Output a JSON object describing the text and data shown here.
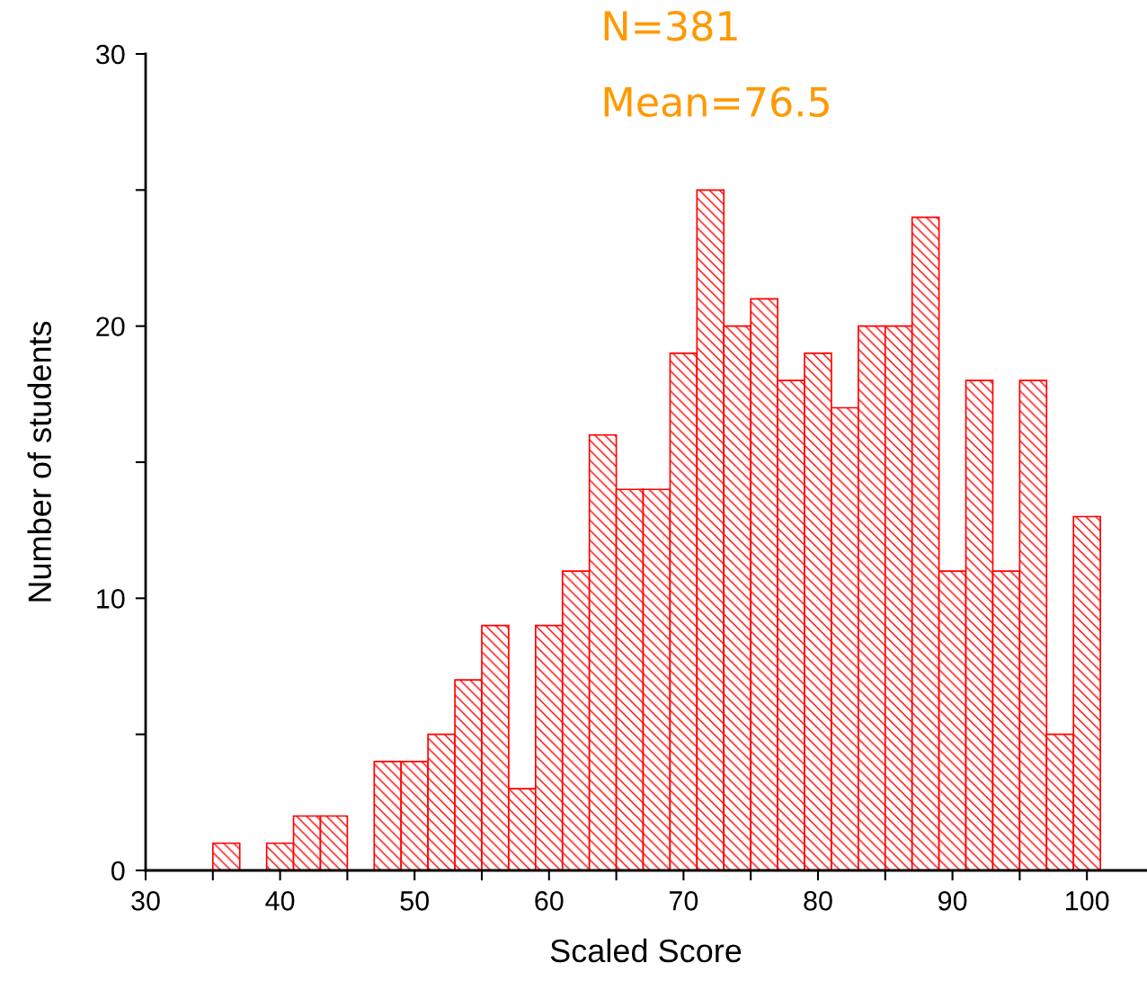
{
  "chart_data": {
    "type": "histogram",
    "xlabel": "Scaled Score",
    "ylabel": "Number of students",
    "annotations": [
      "N=381",
      "Mean=76.5"
    ],
    "bins": [
      35,
      37,
      39,
      41,
      43,
      45,
      47,
      49,
      51,
      53,
      55,
      57,
      59,
      61,
      63,
      65,
      67,
      69,
      71,
      73,
      75,
      77,
      79,
      81,
      83,
      85,
      87,
      89,
      91,
      93,
      95,
      97,
      99,
      101
    ],
    "values": [
      1,
      0,
      1,
      2,
      2,
      0,
      4,
      4,
      5,
      7,
      9,
      3,
      9,
      11,
      16,
      14,
      14,
      19,
      25,
      20,
      21,
      18,
      19,
      17,
      20,
      20,
      24,
      11,
      18,
      11,
      18,
      5,
      13
    ],
    "color": "#ff0000",
    "xlim": [
      30,
      104.4
    ],
    "ylim": [
      0,
      30
    ],
    "xticks": [
      30,
      {
        "value": 35,
        "label": null
      },
      40,
      {
        "value": 45,
        "label": null
      },
      50,
      {
        "value": 55,
        "label": null
      },
      60,
      {
        "value": 65,
        "label": null
      },
      70,
      {
        "value": 75,
        "label": null
      },
      80,
      {
        "value": 85,
        "label": null
      },
      90,
      {
        "value": 95,
        "label": null
      },
      100
    ],
    "yticks": [
      0,
      {
        "value": 5,
        "label": null
      },
      10,
      {
        "value": 15,
        "label": null
      },
      20,
      {
        "value": 25,
        "label": null
      },
      30
    ],
    "grid": false
  }
}
